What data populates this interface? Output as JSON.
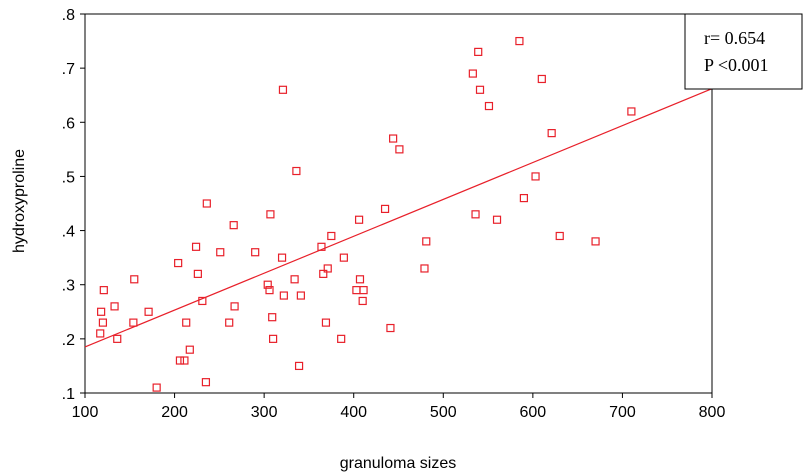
{
  "chart_data": {
    "type": "scatter",
    "xlabel": "granuloma sizes",
    "ylabel": "hydroxyproline",
    "xlim": [
      100,
      800
    ],
    "ylim": [
      0.1,
      0.8
    ],
    "x_ticks": [
      100,
      200,
      300,
      400,
      500,
      600,
      700,
      800
    ],
    "x_tick_labels": [
      "100",
      "200",
      "300",
      "400",
      "500",
      "600",
      "700",
      "800"
    ],
    "y_ticks": [
      0.1,
      0.2,
      0.3,
      0.4,
      0.5,
      0.6,
      0.7,
      0.8
    ],
    "y_tick_labels": [
      ".1",
      ".2",
      ".3",
      ".4",
      ".5",
      ".6",
      ".7",
      ".8"
    ],
    "grid": false,
    "marker_color": "#e8202a",
    "fit_line_color": "#e8202a",
    "fit_line": {
      "x": [
        100,
        800
      ],
      "y": [
        0.185,
        0.662
      ]
    },
    "annotation": {
      "line1": "r= 0.654",
      "line2": "P <0.001"
    },
    "points": [
      {
        "x": 117,
        "y": 0.21
      },
      {
        "x": 118,
        "y": 0.25
      },
      {
        "x": 120,
        "y": 0.23
      },
      {
        "x": 121,
        "y": 0.29
      },
      {
        "x": 133,
        "y": 0.26
      },
      {
        "x": 136,
        "y": 0.2
      },
      {
        "x": 154,
        "y": 0.23
      },
      {
        "x": 155,
        "y": 0.31
      },
      {
        "x": 171,
        "y": 0.25
      },
      {
        "x": 180,
        "y": 0.11
      },
      {
        "x": 204,
        "y": 0.34
      },
      {
        "x": 206,
        "y": 0.16
      },
      {
        "x": 211,
        "y": 0.16
      },
      {
        "x": 213,
        "y": 0.23
      },
      {
        "x": 217,
        "y": 0.18
      },
      {
        "x": 224,
        "y": 0.37
      },
      {
        "x": 226,
        "y": 0.32
      },
      {
        "x": 231,
        "y": 0.27
      },
      {
        "x": 235,
        "y": 0.12
      },
      {
        "x": 236,
        "y": 0.45
      },
      {
        "x": 251,
        "y": 0.36
      },
      {
        "x": 261,
        "y": 0.23
      },
      {
        "x": 266,
        "y": 0.41
      },
      {
        "x": 267,
        "y": 0.26
      },
      {
        "x": 290,
        "y": 0.36
      },
      {
        "x": 304,
        "y": 0.3
      },
      {
        "x": 306,
        "y": 0.29
      },
      {
        "x": 307,
        "y": 0.43
      },
      {
        "x": 309,
        "y": 0.24
      },
      {
        "x": 310,
        "y": 0.2
      },
      {
        "x": 320,
        "y": 0.35
      },
      {
        "x": 321,
        "y": 0.66
      },
      {
        "x": 322,
        "y": 0.28
      },
      {
        "x": 334,
        "y": 0.31
      },
      {
        "x": 336,
        "y": 0.51
      },
      {
        "x": 339,
        "y": 0.15
      },
      {
        "x": 341,
        "y": 0.28
      },
      {
        "x": 364,
        "y": 0.37
      },
      {
        "x": 366,
        "y": 0.32
      },
      {
        "x": 369,
        "y": 0.23
      },
      {
        "x": 371,
        "y": 0.33
      },
      {
        "x": 375,
        "y": 0.39
      },
      {
        "x": 386,
        "y": 0.2
      },
      {
        "x": 389,
        "y": 0.35
      },
      {
        "x": 403,
        "y": 0.29
      },
      {
        "x": 406,
        "y": 0.42
      },
      {
        "x": 407,
        "y": 0.31
      },
      {
        "x": 410,
        "y": 0.27
      },
      {
        "x": 411,
        "y": 0.29
      },
      {
        "x": 435,
        "y": 0.44
      },
      {
        "x": 441,
        "y": 0.22
      },
      {
        "x": 444,
        "y": 0.57
      },
      {
        "x": 451,
        "y": 0.55
      },
      {
        "x": 479,
        "y": 0.33
      },
      {
        "x": 481,
        "y": 0.38
      },
      {
        "x": 533,
        "y": 0.69
      },
      {
        "x": 536,
        "y": 0.43
      },
      {
        "x": 539,
        "y": 0.73
      },
      {
        "x": 541,
        "y": 0.66
      },
      {
        "x": 551,
        "y": 0.63
      },
      {
        "x": 560,
        "y": 0.42
      },
      {
        "x": 585,
        "y": 0.75
      },
      {
        "x": 590,
        "y": 0.46
      },
      {
        "x": 603,
        "y": 0.5
      },
      {
        "x": 610,
        "y": 0.68
      },
      {
        "x": 621,
        "y": 0.58
      },
      {
        "x": 630,
        "y": 0.39
      },
      {
        "x": 670,
        "y": 0.38
      },
      {
        "x": 710,
        "y": 0.62
      }
    ]
  }
}
